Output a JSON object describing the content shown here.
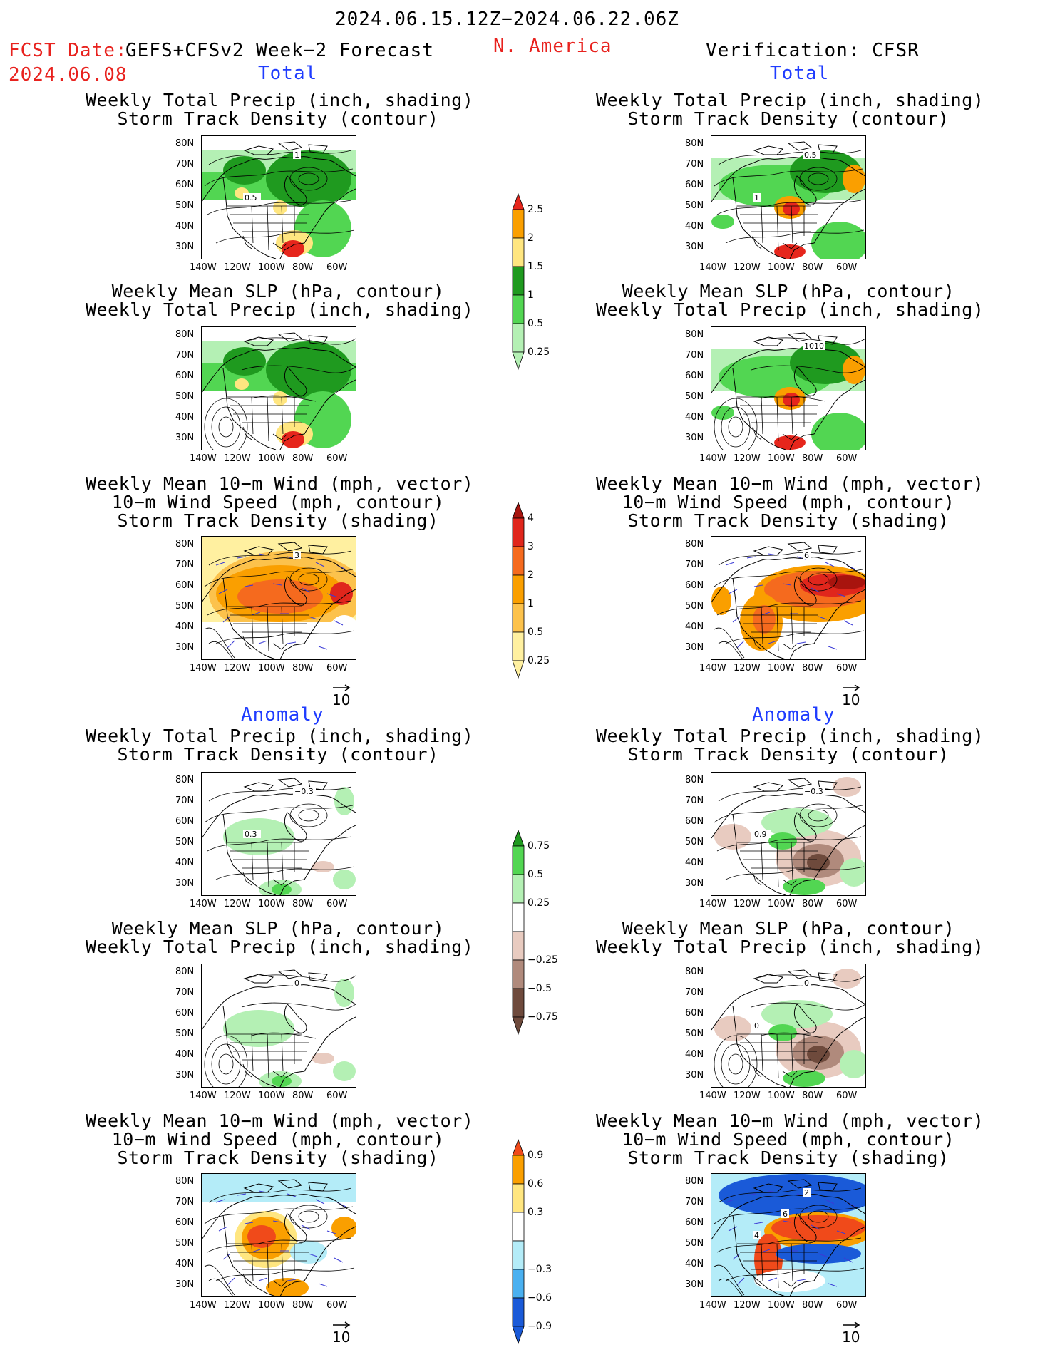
{
  "header": {
    "date_range": "2024.06.15.12Z−2024.06.22.06Z",
    "fcst_label": "FCST Date:",
    "forecast_name": "GEFS+CFSv2 Week−2 Forecast",
    "fcst_date": "2024.06.08",
    "region": "N. America",
    "verification": "Verification: CFSR"
  },
  "sections": {
    "total_left": "Total",
    "total_right": "Total",
    "anomaly_left": "Anomaly",
    "anomaly_right": "Anomaly"
  },
  "panel_titles": {
    "precip_track": [
      "Weekly Total Precip (inch, shading)",
      "Storm Track Density (contour)"
    ],
    "slp_precip": [
      "Weekly Mean SLP (hPa, contour)",
      "Weekly Total Precip (inch, shading)"
    ],
    "wind_track": [
      "Weekly Mean 10−m Wind (mph, vector)",
      "10−m Wind Speed (mph, contour)",
      "Storm Track Density (shading)"
    ]
  },
  "axes": {
    "lat_ticks": [
      "80N",
      "70N",
      "60N",
      "50N",
      "40N",
      "30N"
    ],
    "lon_ticks": [
      "140W",
      "120W",
      "100W",
      "80W",
      "60W"
    ]
  },
  "vector_reference": "10",
  "contour_labels": {
    "fc_total_precip": [
      "1",
      "0.5"
    ],
    "cfsr_total_precip": [
      "0.5",
      "1"
    ],
    "cfsr_total_slp": [
      "1010"
    ],
    "fc_total_wind": [
      "3"
    ],
    "cfsr_total_wind": [
      "6"
    ],
    "fc_anom_precip": [
      "−0.3",
      "0.3"
    ],
    "cfsr_anom_precip": [
      "−0.3",
      "0.9"
    ],
    "fc_anom_slp": [
      "0"
    ],
    "cfsr_anom_slp": [
      "0",
      "0"
    ],
    "cfsr_anom_wind": [
      "2",
      "4",
      "6"
    ]
  },
  "colorbars": {
    "precip_total": {
      "labels": [
        "2.5",
        "2",
        "1.5",
        "1",
        "0.5",
        "0.25"
      ],
      "colors": [
        "#e6261c",
        "#fa9f00",
        "#ffe680",
        "#1f9a1f",
        "#52d652",
        "#b4f0b4"
      ]
    },
    "track_total": {
      "labels": [
        "4",
        "3",
        "2",
        "1",
        "0.5",
        "0.25"
      ],
      "colors": [
        "#a8140e",
        "#e0261c",
        "#f56a1e",
        "#fa9f00",
        "#fcc24c",
        "#fff0a0"
      ]
    },
    "precip_anom": {
      "labels": [
        "0.75",
        "0.5",
        "0.25",
        "−0.25",
        "−0.5",
        "−0.75"
      ],
      "colors": [
        "#1f9a1f",
        "#52d652",
        "#b4f0b4",
        "#ffffff",
        "#e8cbc0",
        "#b08a7c",
        "#6e4a3c"
      ]
    },
    "track_anom": {
      "labels": [
        "0.9",
        "0.6",
        "0.3",
        "−0.3",
        "−0.6",
        "−0.9"
      ],
      "colors": [
        "#f04a1a",
        "#fa9f00",
        "#ffe680",
        "#ffffff",
        "#b4ecf8",
        "#4ab0f0",
        "#1a5ad8"
      ]
    }
  }
}
